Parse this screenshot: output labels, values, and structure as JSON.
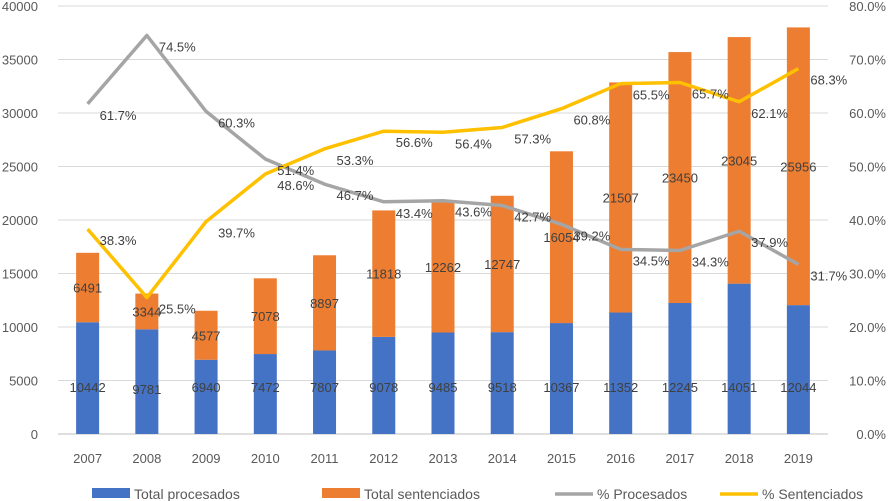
{
  "chart_data": {
    "type": "bar",
    "subtype": "stacked-bar-with-lines-dual-axis",
    "title": "",
    "xlabel": "",
    "ylabel": "",
    "y2label": "",
    "categories": [
      "2007",
      "2008",
      "2009",
      "2010",
      "2011",
      "2012",
      "2013",
      "2014",
      "2015",
      "2016",
      "2017",
      "2018",
      "2019"
    ],
    "series": [
      {
        "name": "Total procesados",
        "type": "bar",
        "axis": "left",
        "color": "#4472C4",
        "values": [
          10442,
          9781,
          6940,
          7472,
          7807,
          9078,
          9485,
          9518,
          10367,
          11352,
          12245,
          14051,
          12044
        ]
      },
      {
        "name": "Total sentenciados",
        "type": "bar",
        "axis": "left",
        "color": "#ED7D31",
        "values": [
          6491,
          3344,
          4577,
          7078,
          8897,
          11818,
          12262,
          12747,
          16054,
          21507,
          23450,
          23045,
          25956
        ]
      },
      {
        "name": "% Procesados",
        "type": "line",
        "axis": "right",
        "color": "#A5A5A5",
        "values": [
          61.7,
          74.5,
          60.3,
          51.4,
          46.7,
          43.4,
          43.6,
          42.7,
          39.2,
          34.5,
          34.3,
          37.9,
          31.7
        ]
      },
      {
        "name": "% Sentenciados",
        "type": "line",
        "axis": "right",
        "color": "#FFC000",
        "values": [
          38.3,
          25.5,
          39.7,
          48.6,
          53.3,
          56.6,
          56.4,
          57.3,
          60.8,
          65.5,
          65.7,
          62.1,
          68.3
        ]
      }
    ],
    "line_labels": {
      "% Procesados": [
        "61.7%",
        "74.5%",
        "60.3%",
        "51.4%",
        "46.7%",
        "43.4%",
        "43.6%",
        "42.7%",
        "39.2%",
        "34.5%",
        "34.3%",
        "37.9%",
        "31.7%"
      ],
      "% Sentenciados": [
        "38.3%",
        "25.5%",
        "39.7%",
        "48.6%",
        "53.3%",
        "56.6%",
        "56.4%",
        "57.3%",
        "60.8%",
        "65.5%",
        "65.7%",
        "62.1%",
        "68.3%"
      ]
    },
    "ylim": [
      0,
      40000
    ],
    "yticks": [
      "0",
      "5000",
      "10000",
      "15000",
      "20000",
      "25000",
      "30000",
      "35000",
      "40000"
    ],
    "y2lim": [
      0,
      80
    ],
    "y2ticks": [
      "0.0%",
      "10.0%",
      "20.0%",
      "30.0%",
      "40.0%",
      "50.0%",
      "60.0%",
      "70.0%",
      "80.0%"
    ],
    "grid": true,
    "legend": "bottom"
  }
}
